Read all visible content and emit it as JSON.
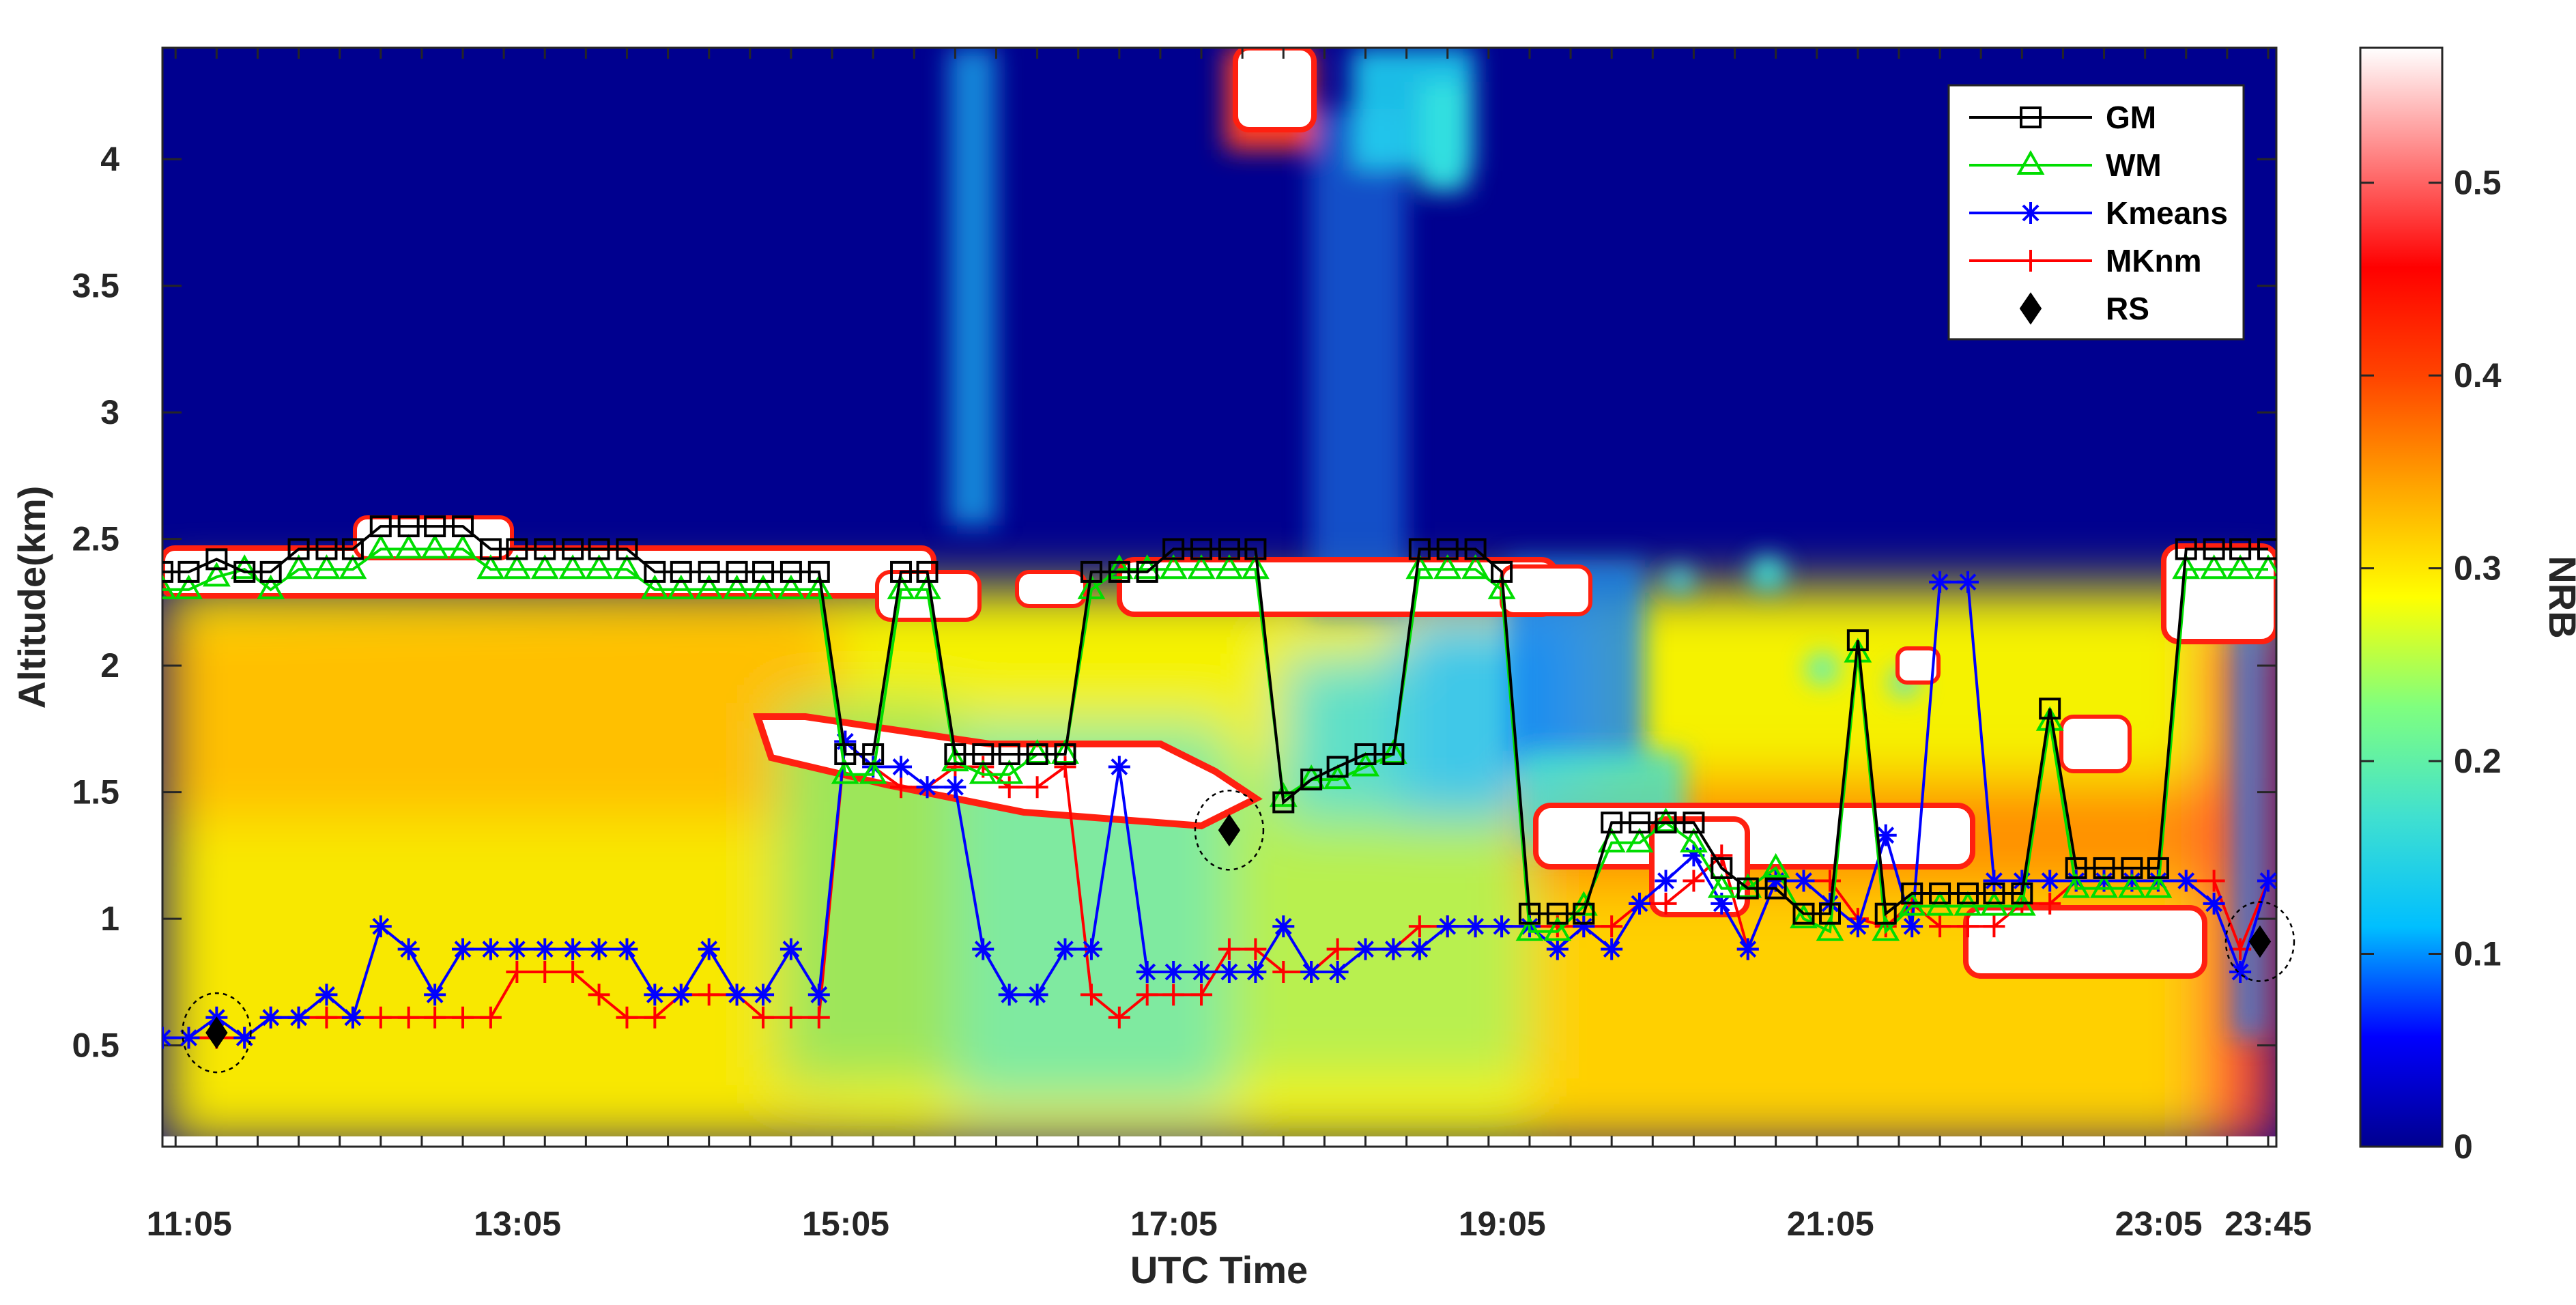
{
  "chart_data": {
    "type": "line",
    "background": "filled contour of NRB (altitude vs UTC time)",
    "xlabel": "UTC Time",
    "ylabel": "Altitude(km)",
    "colorbar_label": "NRB",
    "xlim": [
      10.92,
      23.8
    ],
    "ylim": [
      0.1,
      4.44
    ],
    "x_tick_values": [
      11.083,
      13.083,
      15.083,
      17.083,
      19.083,
      21.083,
      23.083,
      23.75
    ],
    "x_tick_labels": [
      "11:05",
      "13:05",
      "15:05",
      "17:05",
      "19:05",
      "21:05",
      "23:05",
      "23:45"
    ],
    "y_tick_values": [
      0.5,
      1,
      1.5,
      2,
      2.5,
      3,
      3.5,
      4
    ],
    "y_tick_labels": [
      "0.5",
      "1",
      "1.5",
      "2",
      "2.5",
      "3",
      "3.5",
      "4"
    ],
    "colorbar_range": [
      0,
      0.57
    ],
    "colorbar_tick_values": [
      0,
      0.1,
      0.2,
      0.3,
      0.4,
      0.5
    ],
    "colorbar_tick_labels": [
      "0",
      "0.1",
      "0.2",
      "0.3",
      "0.4",
      "0.5"
    ],
    "colors": {
      "gm": "#000000",
      "wm": "#00dd00",
      "kmeans": "#0000ff",
      "mknm": "#ff0000",
      "rs": "#000000",
      "colormap_stops": [
        "#00008f",
        "#0000ff",
        "#00bfff",
        "#40e0d0",
        "#7fff7f",
        "#ffff00",
        "#ffa500",
        "#ff4500",
        "#ff0000",
        "#ff8080",
        "#ffffff"
      ]
    },
    "legend_position": "top-right",
    "series": [
      {
        "name": "GM",
        "marker": "square",
        "x": [
          10.92,
          11.08,
          11.25,
          11.42,
          11.58,
          11.75,
          11.92,
          12.08,
          12.25,
          12.42,
          12.58,
          12.75,
          12.92,
          13.08,
          13.25,
          13.42,
          13.58,
          13.75,
          13.92,
          14.08,
          14.25,
          14.42,
          14.58,
          14.75,
          14.92,
          15.08,
          15.25,
          15.42,
          15.58,
          15.75,
          15.92,
          16.08,
          16.25,
          16.42,
          16.58,
          16.75,
          16.92,
          17.08,
          17.25,
          17.42,
          17.58,
          17.75,
          17.92,
          18.08,
          18.25,
          18.42,
          18.58,
          18.75,
          18.92,
          19.08,
          19.25,
          19.42,
          19.58,
          19.75,
          19.92,
          20.08,
          20.25,
          20.42,
          20.58,
          20.75,
          20.92,
          21.08,
          21.25,
          21.42,
          21.58,
          21.75,
          21.92,
          22.08,
          22.25,
          22.42,
          22.58,
          22.75,
          22.92,
          23.08,
          23.25,
          23.42,
          23.58,
          23.75
        ],
        "y": [
          2.37,
          2.37,
          2.42,
          2.37,
          2.37,
          2.46,
          2.46,
          2.46,
          2.55,
          2.55,
          2.55,
          2.55,
          2.46,
          2.46,
          2.46,
          2.46,
          2.46,
          2.46,
          2.37,
          2.37,
          2.37,
          2.37,
          2.37,
          2.37,
          2.37,
          1.65,
          1.65,
          2.37,
          2.37,
          1.65,
          1.65,
          1.65,
          1.65,
          1.65,
          2.37,
          2.37,
          2.37,
          2.46,
          2.46,
          2.46,
          2.46,
          1.46,
          1.55,
          1.6,
          1.65,
          1.65,
          2.46,
          2.46,
          2.46,
          2.37,
          1.02,
          1.02,
          1.02,
          1.38,
          1.38,
          1.38,
          1.38,
          1.2,
          1.12,
          1.12,
          1.02,
          1.02,
          2.1,
          1.02,
          1.1,
          1.1,
          1.1,
          1.1,
          1.1,
          1.83,
          1.2,
          1.2,
          1.2,
          1.2,
          2.46,
          2.46,
          2.46,
          2.46
        ]
      },
      {
        "name": "WM",
        "marker": "triangle",
        "x": [
          10.92,
          11.08,
          11.25,
          11.42,
          11.58,
          11.75,
          11.92,
          12.08,
          12.25,
          12.42,
          12.58,
          12.75,
          12.92,
          13.08,
          13.25,
          13.42,
          13.58,
          13.75,
          13.92,
          14.08,
          14.25,
          14.42,
          14.58,
          14.75,
          14.92,
          15.08,
          15.25,
          15.42,
          15.58,
          15.75,
          15.92,
          16.08,
          16.25,
          16.42,
          16.58,
          16.75,
          16.92,
          17.08,
          17.25,
          17.42,
          17.58,
          17.75,
          17.92,
          18.08,
          18.25,
          18.42,
          18.58,
          18.75,
          18.92,
          19.08,
          19.25,
          19.42,
          19.58,
          19.75,
          19.92,
          20.08,
          20.25,
          20.42,
          20.58,
          20.75,
          20.92,
          21.08,
          21.25,
          21.42,
          21.58,
          21.75,
          21.92,
          22.08,
          22.25,
          22.42,
          22.58,
          22.75,
          22.92,
          23.08,
          23.25,
          23.42,
          23.58,
          23.75
        ],
        "y": [
          2.3,
          2.3,
          2.35,
          2.38,
          2.3,
          2.38,
          2.38,
          2.38,
          2.46,
          2.46,
          2.46,
          2.46,
          2.38,
          2.38,
          2.38,
          2.38,
          2.38,
          2.38,
          2.3,
          2.3,
          2.3,
          2.3,
          2.3,
          2.3,
          2.3,
          1.57,
          1.57,
          2.3,
          2.3,
          1.62,
          1.57,
          1.57,
          1.65,
          1.65,
          2.3,
          2.38,
          2.38,
          2.38,
          2.38,
          2.38,
          2.38,
          1.48,
          1.55,
          1.55,
          1.6,
          1.65,
          2.38,
          2.38,
          2.38,
          2.3,
          0.95,
          0.95,
          1.05,
          1.3,
          1.3,
          1.38,
          1.3,
          1.12,
          1.12,
          1.2,
          1.0,
          0.95,
          2.05,
          0.95,
          1.05,
          1.05,
          1.05,
          1.05,
          1.05,
          1.78,
          1.12,
          1.12,
          1.12,
          1.12,
          2.38,
          2.38,
          2.38,
          2.38
        ]
      },
      {
        "name": "Kmeans",
        "marker": "asterisk",
        "x": [
          10.92,
          11.08,
          11.25,
          11.42,
          11.58,
          11.75,
          11.92,
          12.08,
          12.25,
          12.42,
          12.58,
          12.75,
          12.92,
          13.08,
          13.25,
          13.42,
          13.58,
          13.75,
          13.92,
          14.08,
          14.25,
          14.42,
          14.58,
          14.75,
          14.92,
          15.08,
          15.25,
          15.42,
          15.58,
          15.75,
          15.92,
          16.08,
          16.25,
          16.42,
          16.58,
          16.75,
          16.92,
          17.08,
          17.25,
          17.42,
          17.58,
          17.75,
          17.92,
          18.08,
          18.25,
          18.42,
          18.58,
          18.75,
          18.92,
          19.08,
          19.25,
          19.42,
          19.58,
          19.75,
          19.92,
          20.08,
          20.25,
          20.42,
          20.58,
          20.75,
          20.92,
          21.08,
          21.25,
          21.42,
          21.58,
          21.75,
          21.92,
          22.08,
          22.25,
          22.42,
          22.58,
          22.75,
          22.92,
          23.08,
          23.25,
          23.42,
          23.58,
          23.75
        ],
        "y": [
          0.53,
          0.53,
          0.61,
          0.53,
          0.61,
          0.61,
          0.7,
          0.61,
          0.97,
          0.88,
          0.7,
          0.88,
          0.88,
          0.88,
          0.88,
          0.88,
          0.88,
          0.88,
          0.7,
          0.7,
          0.88,
          0.7,
          0.7,
          0.88,
          0.7,
          1.7,
          1.6,
          1.6,
          1.52,
          1.52,
          0.88,
          0.7,
          0.7,
          0.88,
          0.88,
          1.6,
          0.79,
          0.79,
          0.79,
          0.79,
          0.79,
          0.97,
          0.79,
          0.79,
          0.88,
          0.88,
          0.88,
          0.97,
          0.97,
          0.97,
          0.97,
          0.88,
          0.97,
          0.88,
          1.06,
          1.15,
          1.25,
          1.06,
          0.88,
          1.15,
          1.15,
          1.06,
          0.97,
          1.33,
          0.97,
          2.33,
          2.33,
          1.15,
          1.15,
          1.15,
          1.15,
          1.15,
          1.15,
          1.15,
          1.15,
          1.06,
          0.79,
          1.15
        ]
      },
      {
        "name": "MKnm",
        "marker": "plus",
        "x": [
          10.92,
          11.08,
          11.25,
          11.42,
          11.58,
          11.75,
          11.92,
          12.08,
          12.25,
          12.42,
          12.58,
          12.75,
          12.92,
          13.08,
          13.25,
          13.42,
          13.58,
          13.75,
          13.92,
          14.08,
          14.25,
          14.42,
          14.58,
          14.75,
          14.92,
          15.08,
          15.25,
          15.42,
          15.58,
          15.75,
          15.92,
          16.08,
          16.25,
          16.42,
          16.58,
          16.75,
          16.92,
          17.08,
          17.25,
          17.42,
          17.58,
          17.75,
          17.92,
          18.08,
          18.25,
          18.42,
          18.58,
          18.75,
          18.92,
          19.08,
          19.25,
          19.42,
          19.58,
          19.75,
          19.92,
          20.08,
          20.25,
          20.42,
          20.58,
          20.75,
          20.92,
          21.08,
          21.25,
          21.42,
          21.58,
          21.75,
          21.92,
          22.08,
          22.25,
          22.42,
          22.58,
          22.75,
          22.92,
          23.08,
          23.25,
          23.42,
          23.58,
          23.75
        ],
        "y": [
          0.53,
          0.53,
          0.53,
          0.53,
          0.61,
          0.61,
          0.61,
          0.61,
          0.61,
          0.61,
          0.61,
          0.61,
          0.61,
          0.79,
          0.79,
          0.79,
          0.7,
          0.61,
          0.61,
          0.7,
          0.7,
          0.7,
          0.61,
          0.61,
          0.61,
          1.7,
          1.6,
          1.52,
          1.52,
          1.6,
          1.6,
          1.52,
          1.52,
          1.6,
          0.7,
          0.61,
          0.7,
          0.7,
          0.7,
          0.88,
          0.88,
          0.79,
          0.79,
          0.88,
          0.88,
          0.88,
          0.97,
          0.97,
          0.97,
          0.97,
          0.97,
          0.97,
          0.97,
          0.97,
          1.06,
          1.06,
          1.15,
          1.25,
          0.88,
          1.15,
          1.15,
          1.15,
          1.0,
          0.97,
          1.06,
          0.97,
          0.97,
          0.97,
          1.06,
          1.06,
          1.15,
          1.15,
          1.15,
          1.15,
          1.15,
          1.15,
          0.88,
          1.15
        ]
      },
      {
        "name": "RS",
        "marker": "diamond",
        "x": [
          11.25,
          17.42,
          23.7
        ],
        "y": [
          0.55,
          1.35,
          0.91
        ]
      }
    ]
  }
}
